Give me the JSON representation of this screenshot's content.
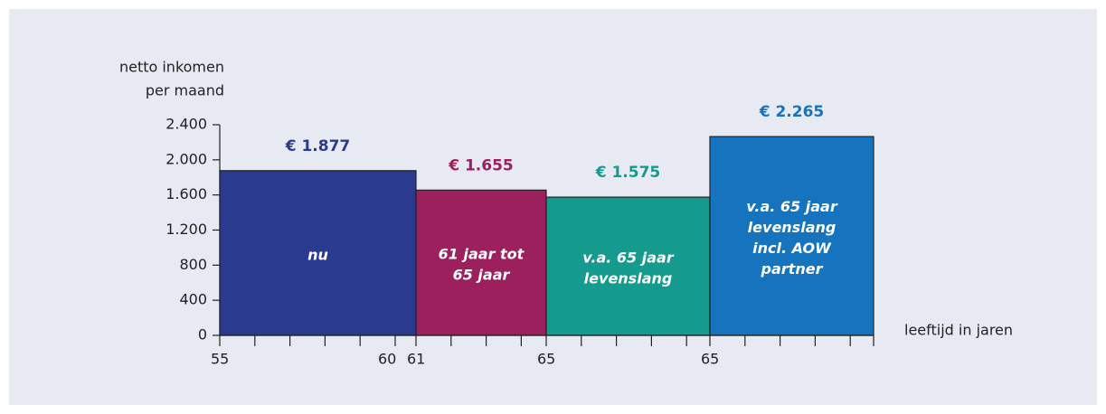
{
  "chart_data": {
    "type": "bar",
    "y_axis_label": [
      "netto inkomen",
      "per maand"
    ],
    "x_axis_label": "leeftijd in jaren",
    "categories": [
      [
        "nu"
      ],
      [
        "61 jaar tot",
        "65 jaar"
      ],
      [
        "v.a. 65 jaar",
        "levenslang"
      ],
      [
        "v.a. 65 jaar",
        "levenslang",
        "incl. AOW",
        "partner"
      ]
    ],
    "values": [
      1877,
      1655,
      1575,
      2265
    ],
    "value_labels": [
      "€ 1.877",
      "€ 1.655",
      "€ 1.575",
      "€ 2.265"
    ],
    "colors": [
      "#2a3a8f",
      "#9c1f5e",
      "#159a8e",
      "#1673be"
    ],
    "x_labels": [
      "55",
      "60",
      "61",
      "65",
      "65"
    ],
    "ylim": [
      0,
      2400
    ],
    "yticks": [
      0,
      400,
      800,
      {
        "value": 1200,
        "label": "1.200"
      },
      {
        "value": 1600,
        "label": "1.600"
      },
      {
        "value": 2000,
        "label": "2.000"
      },
      {
        "value": 2400,
        "label": "2.400"
      }
    ]
  }
}
